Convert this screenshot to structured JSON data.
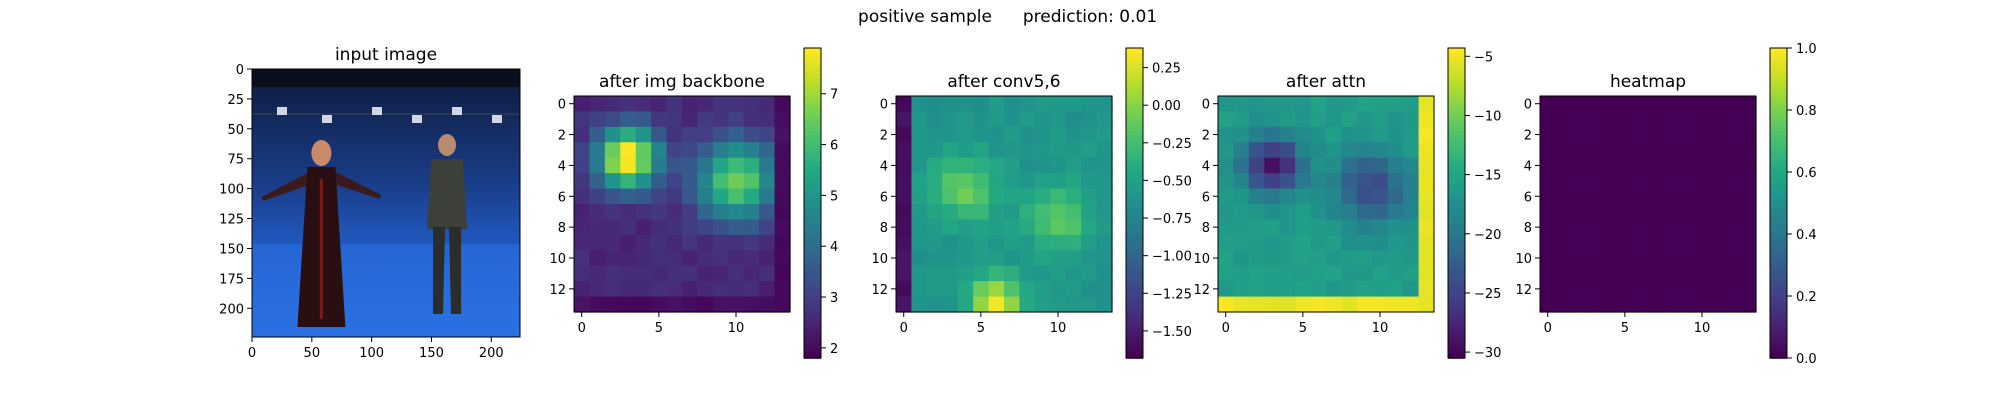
{
  "figure": {
    "suptitle_left": "positive sample",
    "suptitle_right": "prediction: 0.01"
  },
  "chart_data": [
    {
      "type": "image",
      "title": "input image",
      "xlim": [
        0,
        224
      ],
      "ylim": [
        224,
        0
      ],
      "xticks": [
        0,
        50,
        100,
        150,
        200
      ],
      "yticks": [
        0,
        25,
        50,
        75,
        100,
        125,
        150,
        175,
        200
      ],
      "scene": {
        "background": "blue studio backdrop with lighting rig",
        "people": [
          "woman with outstretched arms in long dark dress",
          "man standing in dark clothing"
        ]
      }
    },
    {
      "type": "heatmap",
      "title": "after img backbone",
      "colormap": "viridis",
      "size": [
        14,
        14
      ],
      "xticks": [
        0,
        5,
        10
      ],
      "yticks": [
        0,
        2,
        4,
        6,
        8,
        10,
        12
      ],
      "vmin": 1.8,
      "vmax": 7.9,
      "colorbar_ticks": [
        2,
        3,
        4,
        5,
        6,
        7
      ],
      "blobs": [
        {
          "row": 3.5,
          "col": 3.0,
          "amp": 5.6,
          "sigma": 1.4
        },
        {
          "row": 5.0,
          "col": 10.0,
          "amp": 4.1,
          "sigma": 1.8
        }
      ],
      "base": 2.5,
      "edge": {
        "rows": [
          13
        ],
        "cols": [
          13
        ],
        "value": 2.0
      }
    },
    {
      "type": "heatmap",
      "title": "after conv5,6",
      "colormap": "viridis",
      "size": [
        14,
        14
      ],
      "xticks": [
        0,
        5,
        10
      ],
      "yticks": [
        0,
        2,
        4,
        6,
        8,
        10,
        12
      ],
      "vmin": -1.68,
      "vmax": 0.38,
      "colorbar_ticks": [
        0.25,
        0.0,
        -0.25,
        -0.5,
        -0.75,
        -1.0,
        -1.25,
        -1.5
      ],
      "colorbar_tick_labels": [
        "0.25",
        "0.00",
        "−0.25",
        "−0.50",
        "−0.75",
        "−1.00",
        "−1.25",
        "−1.50"
      ],
      "base": -0.6,
      "blobs": [
        {
          "row": 5.5,
          "col": 4.0,
          "amp": 0.5,
          "sigma": 1.5
        },
        {
          "row": 7.5,
          "col": 10.0,
          "amp": 0.45,
          "sigma": 1.5
        },
        {
          "row": 13.0,
          "col": 6.0,
          "amp": 0.9,
          "sigma": 1.2
        }
      ],
      "edge": {
        "rows": [],
        "cols": [
          0
        ],
        "value": -1.6
      }
    },
    {
      "type": "heatmap",
      "title": "after attn",
      "colormap": "viridis",
      "size": [
        14,
        14
      ],
      "xticks": [
        0,
        5,
        10
      ],
      "yticks": [
        0,
        2,
        4,
        6,
        8,
        10,
        12
      ],
      "vmin": -30.5,
      "vmax": -4.3,
      "colorbar_ticks": [
        -5,
        -10,
        -15,
        -20,
        -25,
        -30
      ],
      "colorbar_tick_labels": [
        "−5",
        "−10",
        "−15",
        "−20",
        "−25",
        "−30"
      ],
      "base": -16,
      "blobs": [
        {
          "row": 4.0,
          "col": 3.0,
          "amp": -13.5,
          "sigma": 1.3
        },
        {
          "row": 5.5,
          "col": 9.5,
          "amp": -8.5,
          "sigma": 1.7
        }
      ],
      "edge": {
        "rows": [
          13
        ],
        "cols": [
          13
        ],
        "value": -5
      }
    },
    {
      "type": "heatmap",
      "title": "heatmap",
      "colormap": "viridis",
      "size": [
        14,
        14
      ],
      "xticks": [
        0,
        5,
        10
      ],
      "yticks": [
        0,
        2,
        4,
        6,
        8,
        10,
        12
      ],
      "vmin": 0.0,
      "vmax": 1.0,
      "colorbar_ticks": [
        0.0,
        0.2,
        0.4,
        0.6,
        0.8,
        1.0
      ],
      "colorbar_tick_labels": [
        "0.0",
        "0.2",
        "0.4",
        "0.6",
        "0.8",
        "1.0"
      ],
      "uniform_value": 0.0
    }
  ]
}
